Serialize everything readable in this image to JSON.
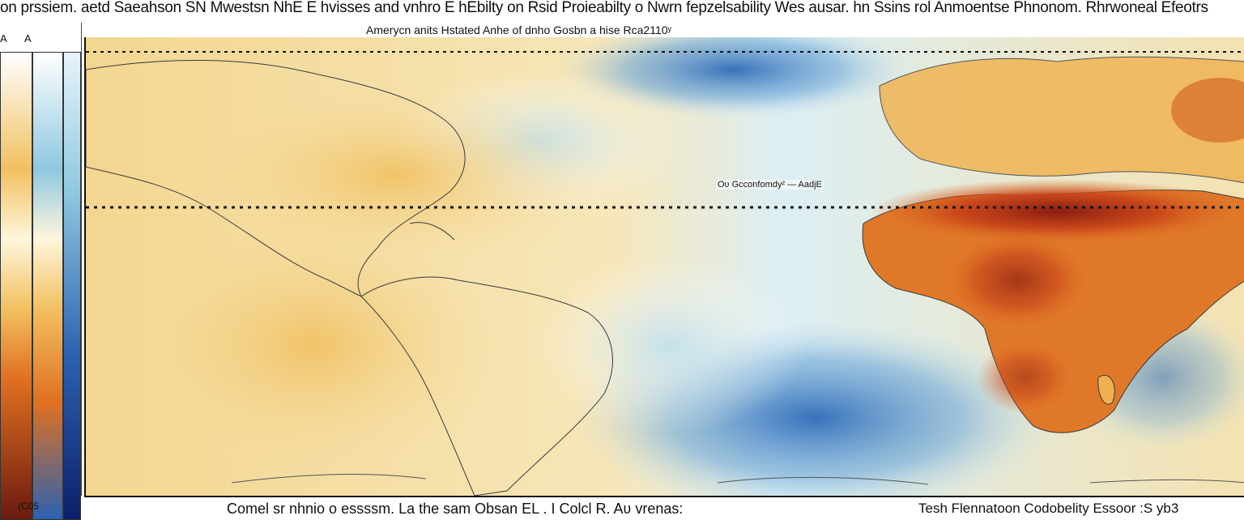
{
  "title": "on prssiem. aetd Saeahson SN Mwestsn NhE E hvisses and vnhro E hEbilty on Rsid Proieabilty o Nwrn fepzelsability Wes ausar. hn Ssins rol Anmoentse Phnonom. Rhrwoneal Efeotrs",
  "subtitle": "Amerycn anits Hstated Anhe of dnho Gosbn a hise Rca2110ʸ",
  "legend": {
    "letter_left": "A",
    "letter_right": "A",
    "tick_label": "(C05",
    "colors": [
      "#6b1a10",
      "#e07020",
      "#f2c060",
      "#fff6dc",
      "#8ec8e0",
      "#2b62b0",
      "#0d1f6a"
    ]
  },
  "annotation": "Oʋ Gcconfomdy² — AadjE",
  "captions": {
    "left": "Comel sr nhnio o essssm. La the sam Obsan EL . I Colcl R. Aʋ vrenas:",
    "right": "Tesh Flennatoon Codobelity Essoor :S yb3"
  },
  "map": {
    "colors": {
      "ocean_warm": "#f4d488",
      "ocean_cool": "#bfe0ee",
      "ocean_cold": "#2e6bb8",
      "land_hot": "#d45a1c",
      "land_very_hot": "#8a1c10",
      "land_warm": "#f0b050",
      "border": "#3a3a3a"
    }
  }
}
